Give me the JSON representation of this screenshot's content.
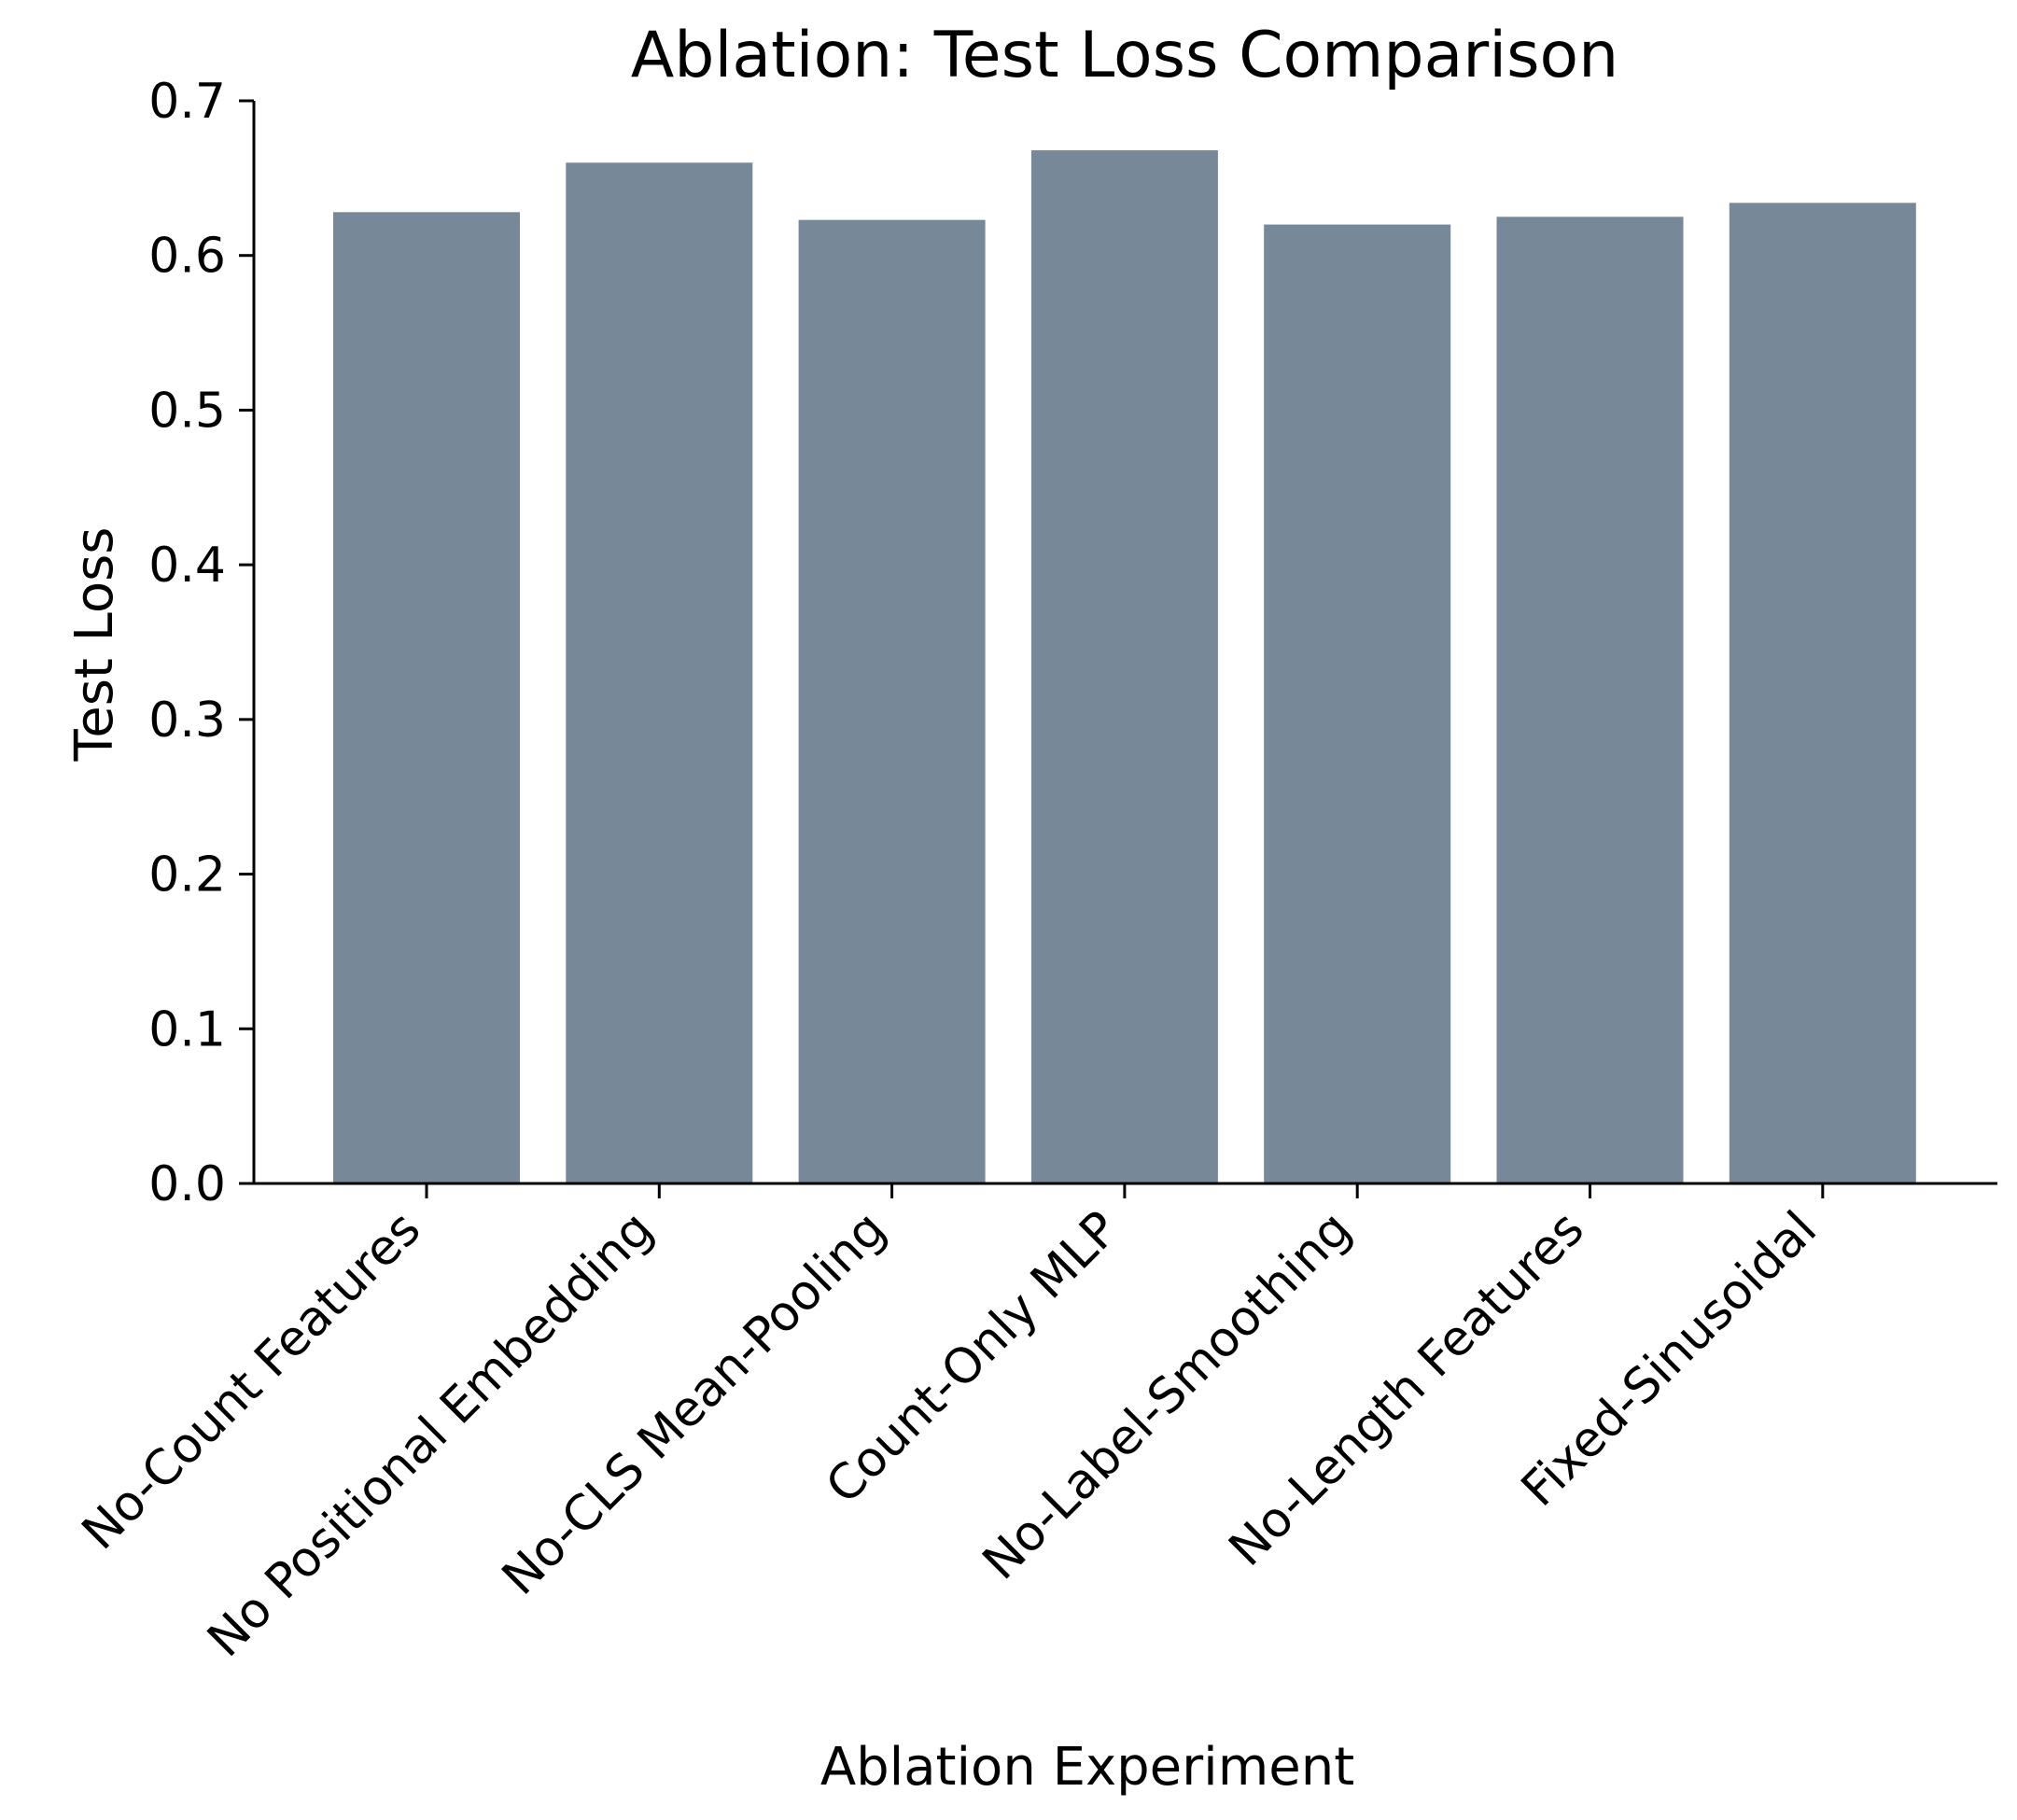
{
  "chart_data": {
    "type": "bar",
    "title": "Ablation: Test Loss Comparison",
    "xlabel": "Ablation Experiment",
    "ylabel": "Test Loss",
    "ylim": [
      0,
      0.7
    ],
    "yticks": [
      "0.0",
      "0.1",
      "0.2",
      "0.3",
      "0.4",
      "0.5",
      "0.6",
      "0.7"
    ],
    "categories": [
      "No-Count Features",
      "No Positional Embedding",
      "No-CLS Mean-Pooling",
      "Count-Only MLP",
      "No-Label-Smoothing",
      "No-Length Features",
      "Fixed-Sinusoidal"
    ],
    "values": [
      0.628,
      0.66,
      0.623,
      0.668,
      0.62,
      0.625,
      0.634
    ],
    "bar_color": "#778899",
    "grid": false,
    "legend": "none"
  }
}
